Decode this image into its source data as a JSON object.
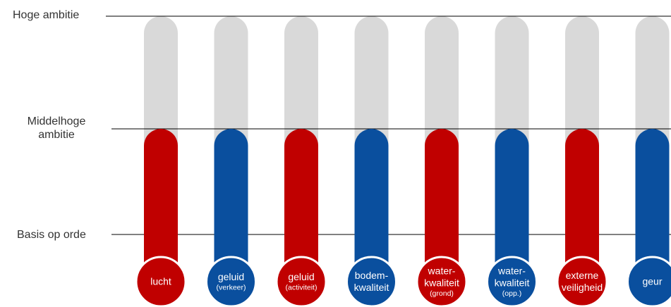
{
  "levels": {
    "high": "Hoge ambitie",
    "mid_line1": "Middelhoge",
    "mid_line2": "ambitie",
    "base": "Basis op orde"
  },
  "colors": {
    "red": "#c00000",
    "blue": "#0a4f9e",
    "track": "#d9d9d9",
    "line": "#000000"
  },
  "chart_data": {
    "type": "bar",
    "y_levels": [
      "Basis op orde",
      "Middelhoge ambitie",
      "Hoge ambitie"
    ],
    "categories": [
      [
        "lucht"
      ],
      [
        "geluid",
        "(verkeer)"
      ],
      [
        "geluid",
        "(activiteit)"
      ],
      [
        "bodem-",
        "kwaliteit"
      ],
      [
        "water-",
        "kwaliteit",
        "(grond)"
      ],
      [
        "water-",
        "kwaliteit",
        "(opp.)"
      ],
      [
        "externe",
        "veiligheid"
      ],
      [
        "geur"
      ]
    ],
    "values": [
      "Middelhoge ambitie",
      "Middelhoge ambitie",
      "Middelhoge ambitie",
      "Middelhoge ambitie",
      "Middelhoge ambitie",
      "Middelhoge ambitie",
      "Middelhoge ambitie",
      "Middelhoge ambitie"
    ],
    "bar_colors": [
      "#c00000",
      "#0a4f9e",
      "#c00000",
      "#0a4f9e",
      "#c00000",
      "#0a4f9e",
      "#c00000",
      "#0a4f9e"
    ],
    "max_level": "Hoge ambitie",
    "grid": true
  }
}
